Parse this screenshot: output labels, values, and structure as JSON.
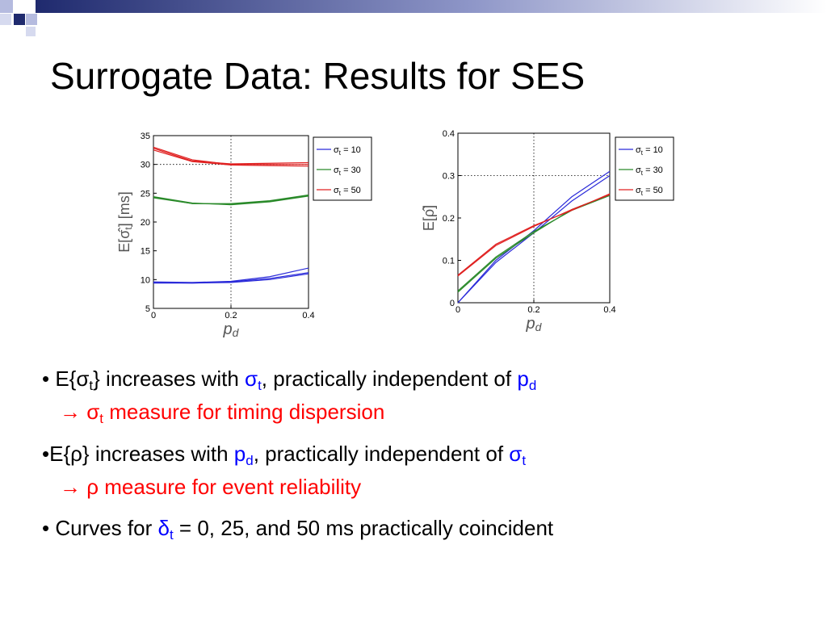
{
  "slide": {
    "title": "Surrogate Data: Results for SES"
  },
  "colors": {
    "accent_navy": "#1f2a6e",
    "accent_lavender": "#b5bbdf",
    "blue_text": "#0000ff",
    "red_text": "#ff0000",
    "series_blue": "#2b2bd9",
    "series_green": "#2a8a2a",
    "series_red": "#e02020"
  },
  "bullets": [
    {
      "lead": "• E{σ",
      "lead_sub": "t",
      "lead_end": "} increases with ",
      "hl": "σ",
      "hl_sub": "t",
      "mid": ", practically independent of ",
      "hl2": "p",
      "hl2_sub": "d",
      "result_arrow": "→ σ",
      "result_sub": "t",
      "result_text": " measure for timing dispersion"
    },
    {
      "lead": "•E{ρ} increases with ",
      "hl": "p",
      "hl_sub": "d",
      "mid": ", practically independent of ",
      "hl2": "σ",
      "hl2_sub": "t",
      "result_text": "→ ρ measure for event reliability"
    },
    {
      "lead": "• Curves for ",
      "hl": "δ",
      "hl_sub": "t",
      "rest": " =  0, 25, and 50 ms practically coincident"
    }
  ],
  "chart_data": [
    {
      "type": "line",
      "xlabel": "p",
      "xlabel_sub": "d",
      "ylabel": "E[σ̂",
      "ylabel_sub": "t",
      "ylabel_end": "] [ms]",
      "xlim": [
        0,
        0.4
      ],
      "ylim": [
        5,
        35
      ],
      "xticks": [
        0,
        0.2,
        0.4
      ],
      "yticks": [
        5,
        10,
        15,
        20,
        25,
        30,
        35
      ],
      "xtick_labels": [
        "0",
        "0.2",
        "0.4"
      ],
      "ytick_labels": [
        "5",
        "10",
        "15",
        "20",
        "25",
        "30",
        "35"
      ],
      "grid": true,
      "legend_placement": "top-right-outside",
      "legend": [
        {
          "label": "σ",
          "sub": "t",
          "value": " = 10",
          "color": "#2b2bd9"
        },
        {
          "label": "σ",
          "sub": "t",
          "value": " = 30",
          "color": "#2a8a2a"
        },
        {
          "label": "σ",
          "sub": "t",
          "value": " = 50",
          "color": "#e02020"
        }
      ],
      "x": [
        0,
        0.1,
        0.2,
        0.3,
        0.4
      ],
      "series": [
        {
          "color": "#2b2bd9",
          "values": [
            9.5,
            9.4,
            9.6,
            10.2,
            11.2
          ]
        },
        {
          "color": "#2b2bd9",
          "values": [
            9.6,
            9.5,
            9.7,
            10.5,
            12.0
          ]
        },
        {
          "color": "#2b2bd9",
          "values": [
            9.4,
            9.4,
            9.5,
            10.0,
            11.0
          ]
        },
        {
          "color": "#2a8a2a",
          "values": [
            24.3,
            23.2,
            23.1,
            23.6,
            24.6
          ]
        },
        {
          "color": "#2a8a2a",
          "values": [
            24.4,
            23.3,
            23.0,
            23.5,
            24.5
          ]
        },
        {
          "color": "#2a8a2a",
          "values": [
            24.2,
            23.2,
            23.2,
            23.7,
            24.7
          ]
        },
        {
          "color": "#e02020",
          "values": [
            33.0,
            30.8,
            30.0,
            30.0,
            30.0
          ]
        },
        {
          "color": "#e02020",
          "values": [
            32.5,
            30.5,
            29.9,
            29.8,
            29.7
          ]
        },
        {
          "color": "#e02020",
          "values": [
            32.8,
            30.6,
            30.1,
            30.2,
            30.3
          ]
        }
      ]
    },
    {
      "type": "line",
      "xlabel": "p",
      "xlabel_sub": "d",
      "ylabel": "E[ρ̂]",
      "xlim": [
        0,
        0.4
      ],
      "ylim": [
        0,
        0.4
      ],
      "xticks": [
        0,
        0.2,
        0.4
      ],
      "yticks": [
        0,
        0.1,
        0.2,
        0.3,
        0.4
      ],
      "xtick_labels": [
        "0",
        "0.2",
        "0.4"
      ],
      "ytick_labels": [
        "0",
        "0.1",
        "0.2",
        "0.3",
        "0.4"
      ],
      "grid": true,
      "legend_placement": "top-right-outside",
      "legend": [
        {
          "label": "σ",
          "sub": "t",
          "value": " = 10",
          "color": "#2b2bd9"
        },
        {
          "label": "σ",
          "sub": "t",
          "value": " = 30",
          "color": "#2a8a2a"
        },
        {
          "label": "σ",
          "sub": "t",
          "value": " = 50",
          "color": "#e02020"
        }
      ],
      "x": [
        0,
        0.1,
        0.2,
        0.3,
        0.4
      ],
      "series": [
        {
          "color": "#2b2bd9",
          "values": [
            0.0,
            0.1,
            0.17,
            0.25,
            0.31
          ]
        },
        {
          "color": "#2b2bd9",
          "values": [
            0.0,
            0.095,
            0.165,
            0.24,
            0.3
          ]
        },
        {
          "color": "#2a8a2a",
          "values": [
            0.025,
            0.105,
            0.165,
            0.22,
            0.255
          ]
        },
        {
          "color": "#2a8a2a",
          "values": [
            0.028,
            0.108,
            0.168,
            0.218,
            0.253
          ]
        },
        {
          "color": "#e02020",
          "values": [
            0.063,
            0.135,
            0.18,
            0.22,
            0.255
          ]
        },
        {
          "color": "#e02020",
          "values": [
            0.065,
            0.138,
            0.182,
            0.218,
            0.257
          ]
        }
      ]
    }
  ]
}
